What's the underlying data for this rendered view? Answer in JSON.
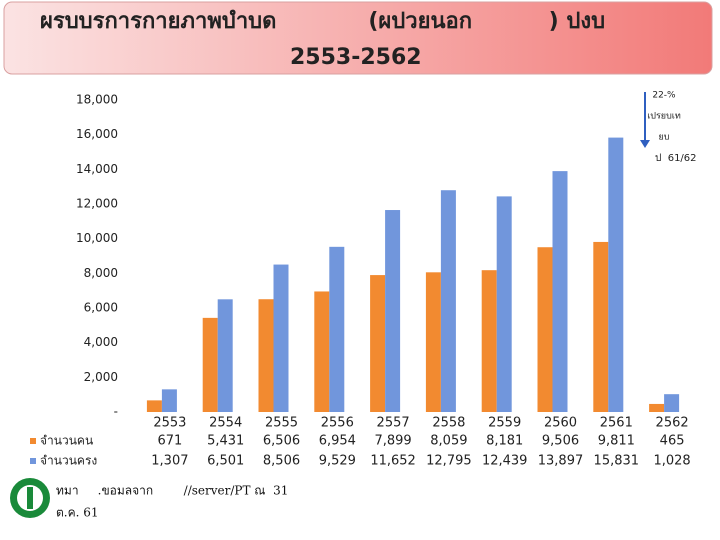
{
  "chart_data": {
    "type": "bar",
    "title_lines": [
      "ผรบบรการกายภาพบำบด            (ผปวยนอก          ) ปงบ",
      "2553-2562"
    ],
    "categories": [
      "2553",
      "2554",
      "2555",
      "2556",
      "2557",
      "2558",
      "2559",
      "2560",
      "2561",
      "2562"
    ],
    "series": [
      {
        "name": "จำนวนคน",
        "color": "#f28a30",
        "values": [
          671,
          5431,
          6506,
          6954,
          7899,
          8059,
          8181,
          9506,
          9811,
          465
        ],
        "value_labels": [
          "671",
          "5,431",
          "6,506",
          "6,954",
          "7,899",
          "8,059",
          "8,181",
          "9,506",
          "9,811",
          "465"
        ]
      },
      {
        "name": "จำนวนครง",
        "color": "#7196dc",
        "values": [
          1307,
          6501,
          8506,
          9529,
          11652,
          12795,
          12439,
          13897,
          15831,
          1028
        ],
        "value_labels": [
          "1,307",
          "6,501",
          "8,506",
          "9,529",
          "11,652",
          "12,795",
          "12,439",
          "13,897",
          "15,831",
          "1,028"
        ]
      }
    ],
    "ylim": [
      0,
      18000
    ],
    "yticks": [
      {
        "value": 0,
        "label": "-"
      },
      {
        "value": 2000,
        "label": "2,000"
      },
      {
        "value": 4000,
        "label": "4,000"
      },
      {
        "value": 6000,
        "label": "6,000"
      },
      {
        "value": 8000,
        "label": "8,000"
      },
      {
        "value": 10000,
        "label": "10,000"
      },
      {
        "value": 12000,
        "label": "12,000"
      },
      {
        "value": 14000,
        "label": "14,000"
      },
      {
        "value": 16000,
        "label": "16,000"
      },
      {
        "value": 18000,
        "label": "18,000"
      }
    ],
    "annotation_lines": [
      "22-%",
      "เปรยบเท",
      "ยบ",
      "ป  61/62"
    ],
    "footer_lines": [
      "ทมา     .ขอมลจาก        //server/PT ณ  31",
      "ต.ค. 61"
    ]
  }
}
